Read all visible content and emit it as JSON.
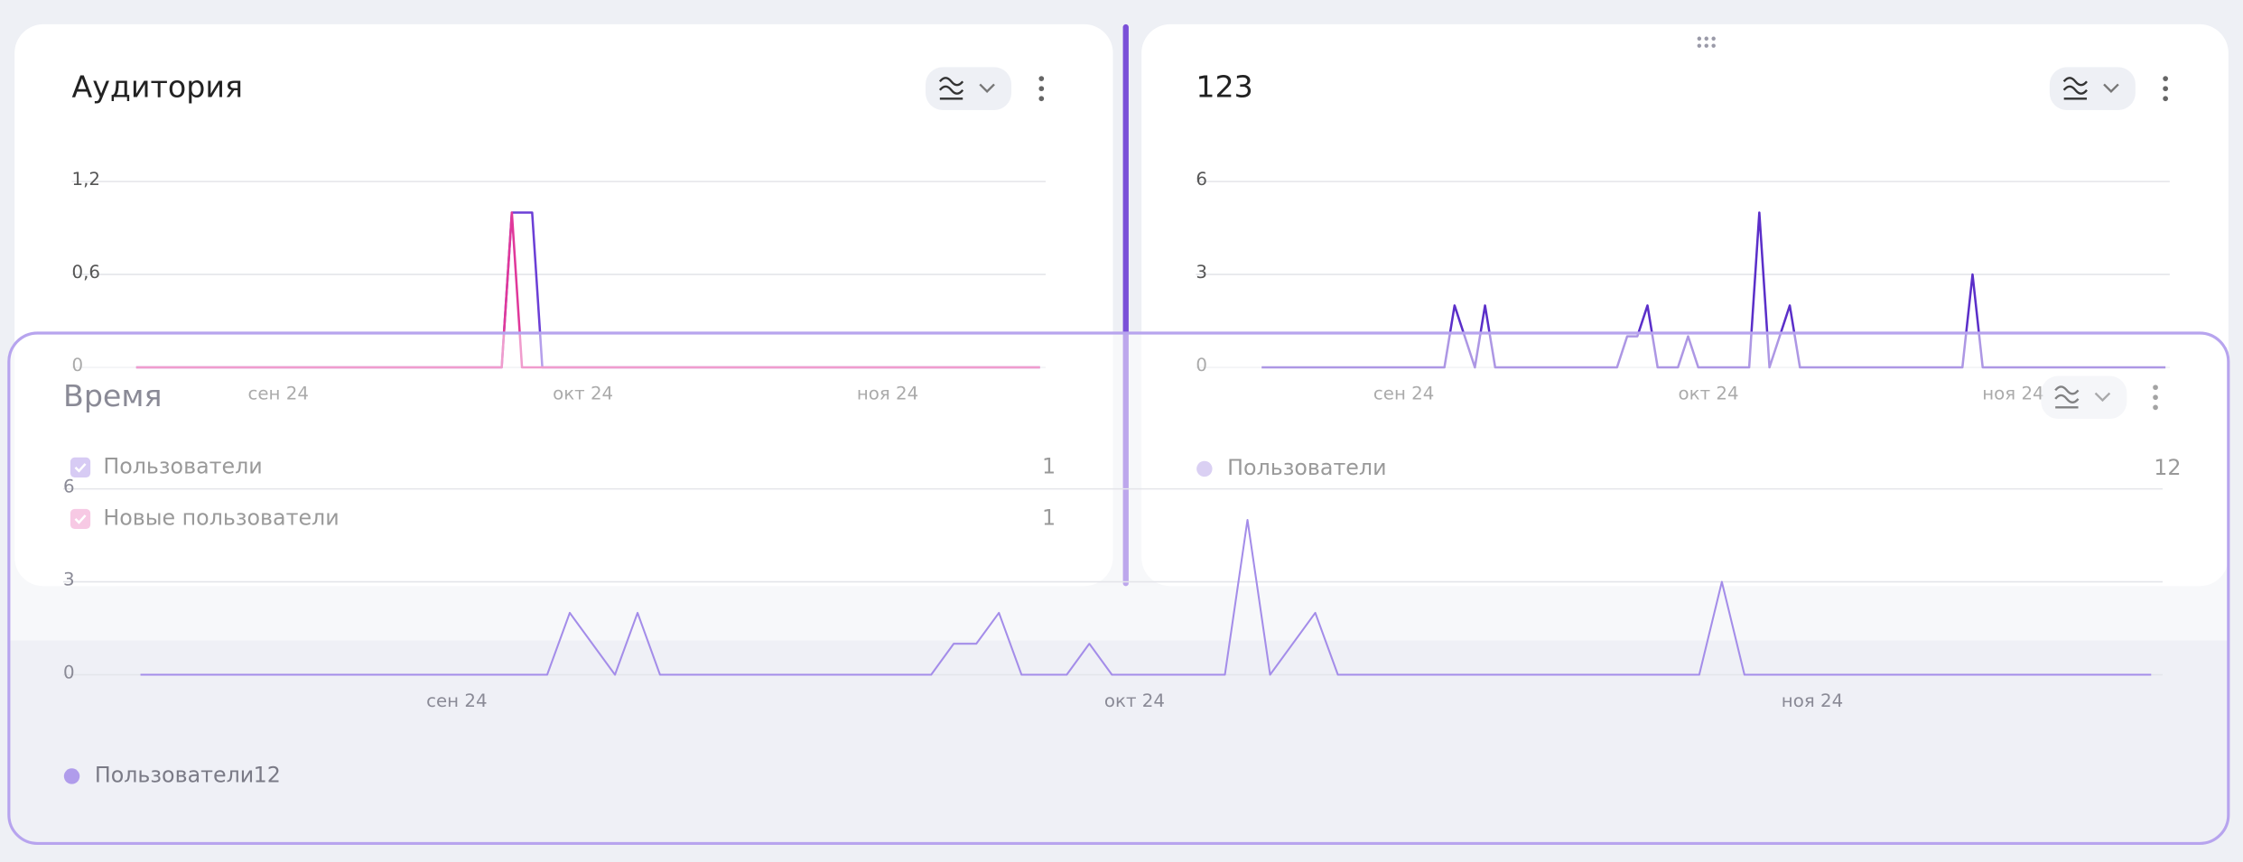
{
  "widgets": [
    {
      "title": "Аудитория",
      "chart": {
        "type": "line",
        "xlim": [
          0,
          89
        ],
        "xticks": [
          {
            "value": 14,
            "label": "сен 24"
          },
          {
            "value": 44,
            "label": "окт 24"
          },
          {
            "value": 74,
            "label": "ноя 24"
          }
        ],
        "ylim": [
          0,
          1.2
        ],
        "yticks": [
          0,
          {
            "value": 0.6,
            "label": "0,6"
          },
          {
            "value": 1.2,
            "label": "1,2"
          }
        ],
        "grid": true,
        "series": [
          {
            "name": "Пользователи",
            "color": "#6b3fd6",
            "total": 1,
            "x": [
              0,
              36,
              37,
              39,
              40,
              89
            ],
            "values": [
              0,
              0,
              1,
              1,
              0,
              0
            ]
          },
          {
            "name": "Новые пользователи",
            "color": "#e0389a",
            "total": 1,
            "x": [
              0,
              36,
              37,
              38,
              89
            ],
            "values": [
              0,
              0,
              1,
              0,
              0
            ]
          }
        ]
      }
    },
    {
      "title": "123",
      "chart": {
        "type": "line",
        "xlim": [
          0,
          89
        ],
        "xticks": [
          {
            "value": 14,
            "label": "сен 24"
          },
          {
            "value": 44,
            "label": "окт 24"
          },
          {
            "value": 74,
            "label": "ноя 24"
          }
        ],
        "ylim": [
          0,
          6
        ],
        "yticks": [
          0,
          3,
          6
        ],
        "grid": true,
        "series": [
          {
            "name": "Пользователи",
            "color": "#5b2fc9",
            "total": 12,
            "x": [
              0,
              18,
              19,
              21,
              22,
              23,
              35,
              36,
              37,
              38,
              39,
              41,
              42,
              43,
              48,
              49,
              50,
              52,
              53,
              69,
              70,
              71,
              89
            ],
            "values": [
              0,
              0,
              2,
              0,
              2,
              0,
              0,
              1,
              1,
              2,
              0,
              0,
              1,
              0,
              0,
              5,
              0,
              2,
              0,
              0,
              3,
              0,
              0
            ]
          }
        ]
      }
    },
    {
      "title": "Время",
      "chart": {
        "type": "line",
        "xlim": [
          0,
          89
        ],
        "xticks": [
          {
            "value": 14,
            "label": "сен 24"
          },
          {
            "value": 44,
            "label": "окт 24"
          },
          {
            "value": 74,
            "label": "ноя 24"
          }
        ],
        "ylim": [
          0,
          6
        ],
        "yticks": [
          0,
          3,
          6
        ],
        "grid": true,
        "series": [
          {
            "name": "Пользователи",
            "color": "#a48de9",
            "total": 12,
            "x": [
              0,
              18,
              19,
              21,
              22,
              23,
              35,
              36,
              37,
              38,
              39,
              41,
              42,
              43,
              48,
              49,
              50,
              52,
              53,
              69,
              70,
              71,
              89
            ],
            "values": [
              0,
              0,
              2,
              0,
              2,
              0,
              0,
              1,
              1,
              2,
              0,
              0,
              1,
              0,
              0,
              5,
              0,
              2,
              0,
              0,
              3,
              0,
              0
            ]
          }
        ]
      }
    }
  ]
}
